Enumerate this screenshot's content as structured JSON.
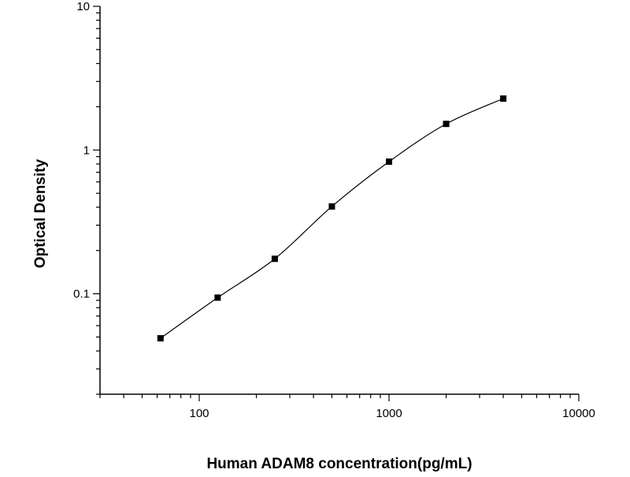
{
  "chart_data": {
    "type": "scatter",
    "xlabel": "Human ADAM8 concentration(pg/mL)",
    "ylabel": "Optical Density",
    "x_scale": "log",
    "y_scale": "log",
    "xlim": [
      30,
      10000
    ],
    "ylim": [
      0.02,
      10
    ],
    "x_ticks": [
      {
        "value": 100,
        "label": "100"
      },
      {
        "value": 1000,
        "label": "1000"
      },
      {
        "value": 10000,
        "label": "10000"
      }
    ],
    "y_ticks": [
      {
        "value": 0.1,
        "label": "0.1"
      },
      {
        "value": 1,
        "label": "1"
      },
      {
        "value": 10,
        "label": "10"
      }
    ],
    "grid": false,
    "legend": "none",
    "series": [
      {
        "x": [
          62.5,
          125,
          250,
          500,
          1000,
          2000,
          4000
        ],
        "y": [
          0.049,
          0.094,
          0.175,
          0.405,
          0.83,
          1.52,
          2.28
        ],
        "marker": "square",
        "fit_curve": true,
        "color": "#000000"
      }
    ]
  }
}
